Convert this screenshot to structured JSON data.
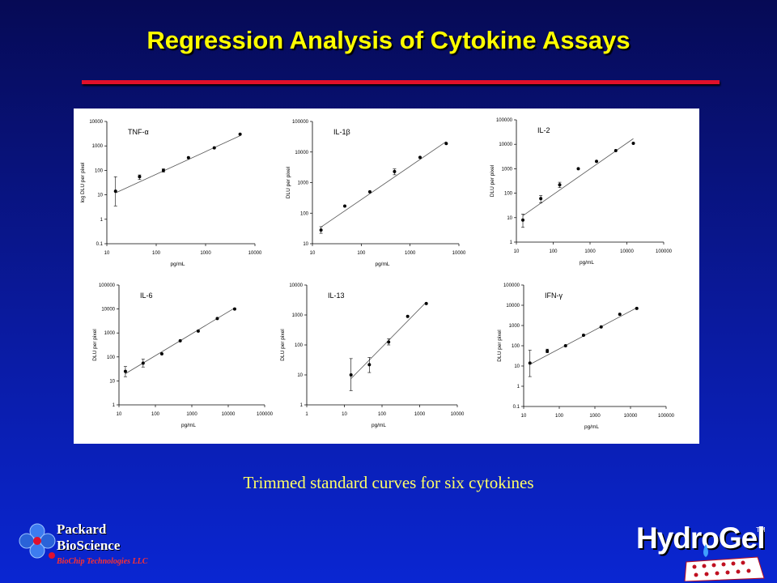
{
  "slide": {
    "title": "Regression Analysis of Cytokine Assays",
    "caption": "Trimmed standard curves for six cytokines"
  },
  "logos": {
    "left_line1": "Packard",
    "left_line2": "BioScience",
    "left_line3": "BioChip Technologies LLC",
    "right": "HydroGel",
    "right_tm": "TM"
  },
  "colors": {
    "title": "#ffff00",
    "rule": "#e0102a",
    "caption": "#ffff66"
  },
  "chart_data": [
    {
      "type": "scatter",
      "title": "TNF-α",
      "xlabel": "pg/mL",
      "ylabel": "log DLU per pixel",
      "xscale": "log",
      "yscale": "log",
      "xlim": [
        10,
        10000
      ],
      "ylim": [
        0.1,
        10000
      ],
      "xticks": [
        "10",
        "100",
        "1000",
        "10000"
      ],
      "yticks": [
        "0.1",
        "1",
        "10",
        "100",
        "1000",
        "10000"
      ],
      "x": [
        15,
        46,
        140,
        450,
        1500,
        5000
      ],
      "y": [
        14,
        55,
        100,
        330,
        830,
        3000
      ],
      "error": [
        [
          3.5,
          55
        ],
        [
          42,
          65
        ],
        [
          85,
          115
        ],
        null,
        null,
        null
      ],
      "fit": [
        [
          15,
          12
        ],
        [
          5000,
          2600
        ]
      ]
    },
    {
      "type": "scatter",
      "title": "IL-1β",
      "xlabel": "pg/mL",
      "ylabel": "DLU per pixel",
      "xscale": "log",
      "yscale": "log",
      "xlim": [
        10,
        10000
      ],
      "ylim": [
        10,
        100000
      ],
      "xticks": [
        "10",
        "100",
        "1000",
        "10000"
      ],
      "yticks": [
        "10",
        "100",
        "1000",
        "10000",
        "100000"
      ],
      "x": [
        15,
        46,
        150,
        480,
        1600,
        5500
      ],
      "y": [
        28,
        170,
        500,
        2300,
        6700,
        19000
      ],
      "error": [
        [
          22,
          36
        ],
        null,
        null,
        [
          1800,
          2800
        ],
        null,
        null
      ],
      "fit": [
        [
          15,
          35
        ],
        [
          5500,
          22000
        ]
      ]
    },
    {
      "type": "scatter",
      "title": "IL-2",
      "xlabel": "pg/mL",
      "ylabel": "DLU per pixel",
      "xscale": "log",
      "yscale": "log",
      "xlim": [
        10,
        100000
      ],
      "ylim": [
        1,
        100000
      ],
      "xticks": [
        "10",
        "100",
        "1000",
        "10000",
        "100000"
      ],
      "yticks": [
        "1",
        "10",
        "100",
        "1000",
        "10000",
        "100000"
      ],
      "x": [
        15,
        46,
        150,
        480,
        1500,
        5000,
        15000
      ],
      "y": [
        8,
        60,
        220,
        1000,
        2000,
        5500,
        11000
      ],
      "error": [
        [
          4,
          14
        ],
        [
          40,
          80
        ],
        [
          170,
          280
        ],
        null,
        null,
        null,
        null
      ],
      "fit": [
        [
          15,
          12
        ],
        [
          15000,
          17000
        ]
      ]
    },
    {
      "type": "scatter",
      "title": "IL-6",
      "xlabel": "pg/mL",
      "ylabel": "DLU per pixel",
      "xscale": "log",
      "yscale": "log",
      "xlim": [
        10,
        100000
      ],
      "ylim": [
        1,
        100000
      ],
      "xticks": [
        "10",
        "100",
        "1000",
        "10000",
        "100000"
      ],
      "yticks": [
        "1",
        "10",
        "100",
        "1000",
        "10000",
        "100000"
      ],
      "x": [
        15,
        46,
        150,
        480,
        1500,
        5000,
        15000
      ],
      "y": [
        25,
        55,
        135,
        470,
        1200,
        4000,
        10000
      ],
      "error": [
        [
          15,
          40
        ],
        [
          38,
          80
        ],
        null,
        null,
        null,
        null,
        null
      ],
      "fit": [
        [
          15,
          20
        ],
        [
          15000,
          11000
        ]
      ]
    },
    {
      "type": "scatter",
      "title": "IL-13",
      "xlabel": "pg/mL",
      "ylabel": "DLU per pixel",
      "xscale": "log",
      "yscale": "log",
      "xlim": [
        1,
        10000
      ],
      "ylim": [
        1,
        10000
      ],
      "xticks": [
        "1",
        "10",
        "100",
        "1000",
        "10000"
      ],
      "yticks": [
        "1",
        "10",
        "100",
        "1000",
        "10000"
      ],
      "x": [
        15,
        46,
        150,
        480,
        1500
      ],
      "y": [
        10,
        22,
        125,
        900,
        2400
      ],
      "error": [
        [
          3,
          35
        ],
        [
          12,
          38
        ],
        [
          100,
          160
        ],
        null,
        null
      ],
      "fit": [
        [
          15,
          7.5
        ],
        [
          1500,
          2700
        ]
      ]
    },
    {
      "type": "scatter",
      "title": "IFN-γ",
      "xlabel": "pg/mL",
      "ylabel": "DLU per pixel",
      "xscale": "log",
      "yscale": "log",
      "xlim": [
        10,
        100000
      ],
      "ylim": [
        0.1,
        100000
      ],
      "xticks": [
        "10",
        "100",
        "1000",
        "10000",
        "100000"
      ],
      "yticks": [
        "0.1",
        "1",
        "10",
        "100",
        "1000",
        "10000",
        "100000"
      ],
      "x": [
        15,
        46,
        150,
        480,
        1500,
        5000,
        15000
      ],
      "y": [
        14,
        55,
        100,
        330,
        850,
        3600,
        7000
      ],
      "error": [
        [
          3,
          60
        ],
        [
          45,
          68
        ],
        null,
        null,
        null,
        null,
        null
      ],
      "fit": [
        [
          15,
          12
        ],
        [
          15000,
          7500
        ]
      ]
    }
  ]
}
